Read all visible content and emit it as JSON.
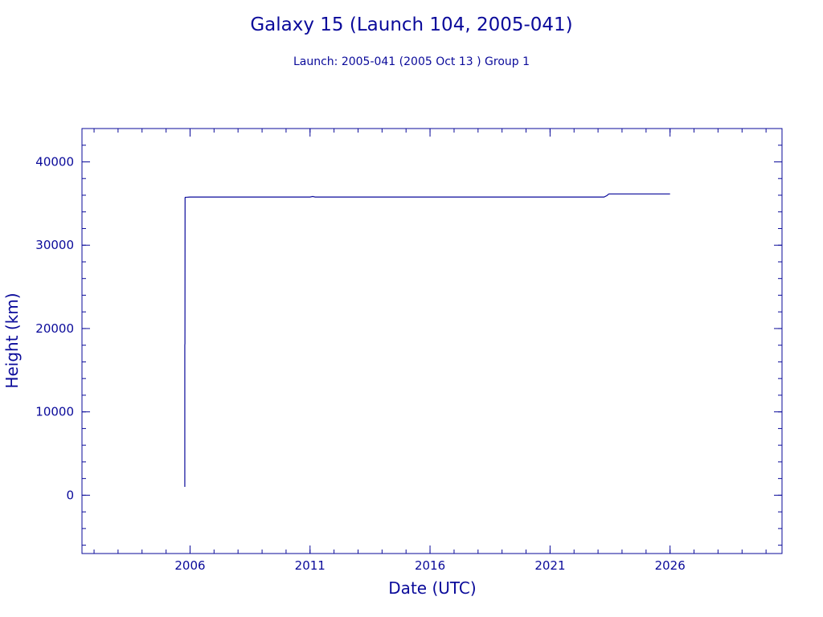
{
  "chart_data": {
    "type": "line",
    "title": "Galaxy 15 (Launch 104, 2005-041)",
    "subtitle": "Launch: 2005-041  (2005 Oct 13 )  Group 1",
    "xlabel": "Date (UTC)",
    "ylabel": "Height (km)",
    "xlim": [
      "2001-07-01",
      "2030-09-01"
    ],
    "ylim": [
      -7000,
      44000
    ],
    "xticks": [
      {
        "value": "2006-01-01",
        "label": "2006"
      },
      {
        "value": "2011-01-01",
        "label": "2011"
      },
      {
        "value": "2016-01-01",
        "label": "2016"
      },
      {
        "value": "2021-01-01",
        "label": "2021"
      },
      {
        "value": "2026-01-01",
        "label": "2026"
      }
    ],
    "yticks": [
      {
        "value": 0,
        "label": "0"
      },
      {
        "value": 10000,
        "label": "10000"
      },
      {
        "value": 20000,
        "label": "20000"
      },
      {
        "value": 30000,
        "label": "30000"
      },
      {
        "value": 40000,
        "label": "40000"
      }
    ],
    "line_color": "#0a0a9a",
    "grid": false,
    "series": [
      {
        "x": [
          "2005-10-13",
          "2005-10-13",
          "2005-10-15",
          "2005-10-17",
          "2005-10-20",
          "2005-11-05",
          "2006-01-01",
          "2011-01-01",
          "2011-02-10",
          "2011-03-20",
          "2015-01-01",
          "2020-01-01",
          "2023-04-01",
          "2023-05-15",
          "2023-06-15",
          "2026-01-01"
        ],
        "y": [
          1000,
          18000,
          18200,
          35700,
          35750,
          35750,
          35780,
          35780,
          35850,
          35780,
          35780,
          35780,
          35780,
          35950,
          36150,
          36150
        ]
      }
    ]
  }
}
